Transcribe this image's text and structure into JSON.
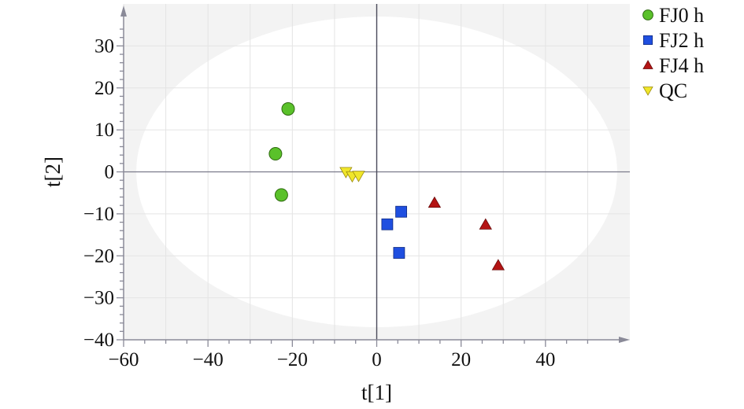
{
  "chart_data": {
    "type": "scatter",
    "title": "",
    "xlabel": "t[1]",
    "ylabel": "t[2]",
    "xlim": [
      -60,
      60
    ],
    "ylim": [
      -40,
      40
    ],
    "x_ticks": [
      -60,
      -40,
      -20,
      0,
      20,
      40
    ],
    "y_ticks": [
      -40,
      -30,
      -20,
      -10,
      0,
      10,
      20,
      30
    ],
    "x_tick_labels": [
      "−60",
      "−40",
      "−20",
      "0",
      "20",
      "40"
    ],
    "y_tick_labels": [
      "−40",
      "−30",
      "−20",
      "−10",
      "0",
      "10",
      "20",
      "30"
    ],
    "grid": true,
    "legend_position": "top-right",
    "confidence_ellipse": {
      "x_radius": 57,
      "y_radius": 37
    },
    "series": [
      {
        "name": "FJ0 h",
        "marker": "circle",
        "color": "#5ac12a",
        "points": [
          {
            "x": -21,
            "y": 15
          },
          {
            "x": -24,
            "y": 4.3
          },
          {
            "x": -22.6,
            "y": -5.5
          }
        ]
      },
      {
        "name": "FJ2 h",
        "marker": "square",
        "color": "#1f4fe0",
        "points": [
          {
            "x": 2.5,
            "y": -12.5
          },
          {
            "x": 5.8,
            "y": -9.5
          },
          {
            "x": 5.3,
            "y": -19.3
          }
        ]
      },
      {
        "name": "FJ4 h",
        "marker": "triangle-up",
        "color": "#b41414",
        "points": [
          {
            "x": 13.7,
            "y": -7.4
          },
          {
            "x": 25.8,
            "y": -12.6
          },
          {
            "x": 28.8,
            "y": -22.3
          }
        ]
      },
      {
        "name": "QC",
        "marker": "triangle-down",
        "color": "#f0e62a",
        "points": [
          {
            "x": -7.3,
            "y": 0
          },
          {
            "x": -5.8,
            "y": -1
          },
          {
            "x": -4.3,
            "y": -0.9
          }
        ]
      }
    ]
  }
}
